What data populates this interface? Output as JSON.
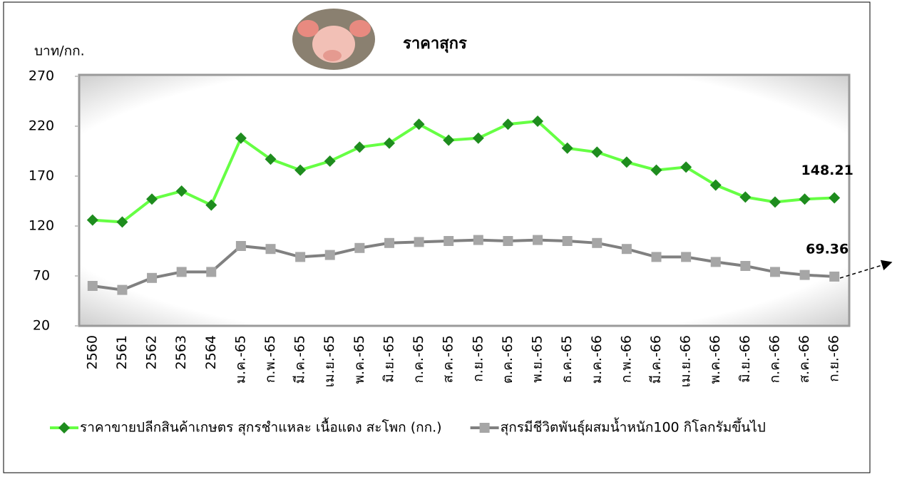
{
  "chart_data": {
    "type": "line",
    "title": "ราคาสุกร",
    "y_label": "บาท/กก.",
    "categories": [
      "2560",
      "2561",
      "2562",
      "2563",
      "2564",
      "ม.ค.-65",
      "ก.พ.-65",
      "มี.ค.-65",
      "เม.ย.-65",
      "พ.ค.-65",
      "มิ.ย.-65",
      "ก.ค.-65",
      "ส.ค.-65",
      "ก.ย.-65",
      "ต.ค.-65",
      "พ.ย.-65",
      "ธ.ค.-65",
      "ม.ค.-66",
      "ก.พ.-66",
      "มี.ค.-66",
      "เม.ย.-66",
      "พ.ค.-66",
      "มิ.ย.-66",
      "ก.ค.-66",
      "ส.ค.-66",
      "ก.ย.-66"
    ],
    "series": [
      {
        "name": "ราคาขายปลีกสินค้าเกษตร สุกรชำแหละ เนื้อแดง สะโพก (กก.)",
        "color": "#66ff44",
        "marker_color": "#1e8c1e",
        "marker": "diamond",
        "values": [
          126,
          124,
          147,
          155,
          141,
          208,
          187,
          176,
          185,
          199,
          203,
          222,
          206,
          208,
          222,
          225,
          198,
          194,
          184,
          176,
          179,
          161,
          149,
          144,
          147,
          148.21
        ]
      },
      {
        "name": "สุกรมีชีวิตพันธุ์ผสมน้ำหนัก100 กิโลกรัมขึ้นไป",
        "color": "#808080",
        "marker_color": "#a6a6a6",
        "marker": "square",
        "values": [
          60,
          56,
          68,
          74,
          74,
          100,
          97,
          89,
          91,
          98,
          103,
          104,
          105,
          106,
          105,
          106,
          105,
          103,
          97,
          89,
          89,
          84,
          80,
          74,
          71,
          69.36
        ]
      }
    ],
    "ylim": [
      20,
      270
    ],
    "yticks": [
      20,
      70,
      120,
      170,
      220,
      270
    ],
    "grid": false
  }
}
